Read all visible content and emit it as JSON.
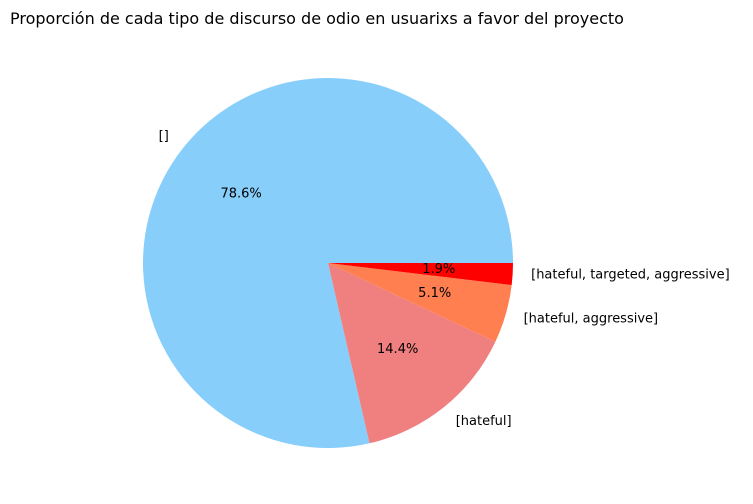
{
  "chart_data": {
    "type": "pie",
    "title": "Proporción de cada tipo de discurso de odio en usuarixs a favor del proyecto",
    "slices": [
      {
        "label": "[]",
        "value": 78.6,
        "pct_label": "78.6%",
        "color": "#87cefa"
      },
      {
        "label": "[hateful]",
        "value": 14.4,
        "pct_label": "14.4%",
        "color": "#f08080"
      },
      {
        "label": "[hateful, aggressive]",
        "value": 5.1,
        "pct_label": "5.1%",
        "color": "#ff7f50"
      },
      {
        "label": "[hateful, targeted, aggressive]",
        "value": 1.9,
        "pct_label": "1.9%",
        "color": "#ff0000"
      }
    ],
    "start_angle_deg": 0,
    "direction": "counterclockwise"
  }
}
